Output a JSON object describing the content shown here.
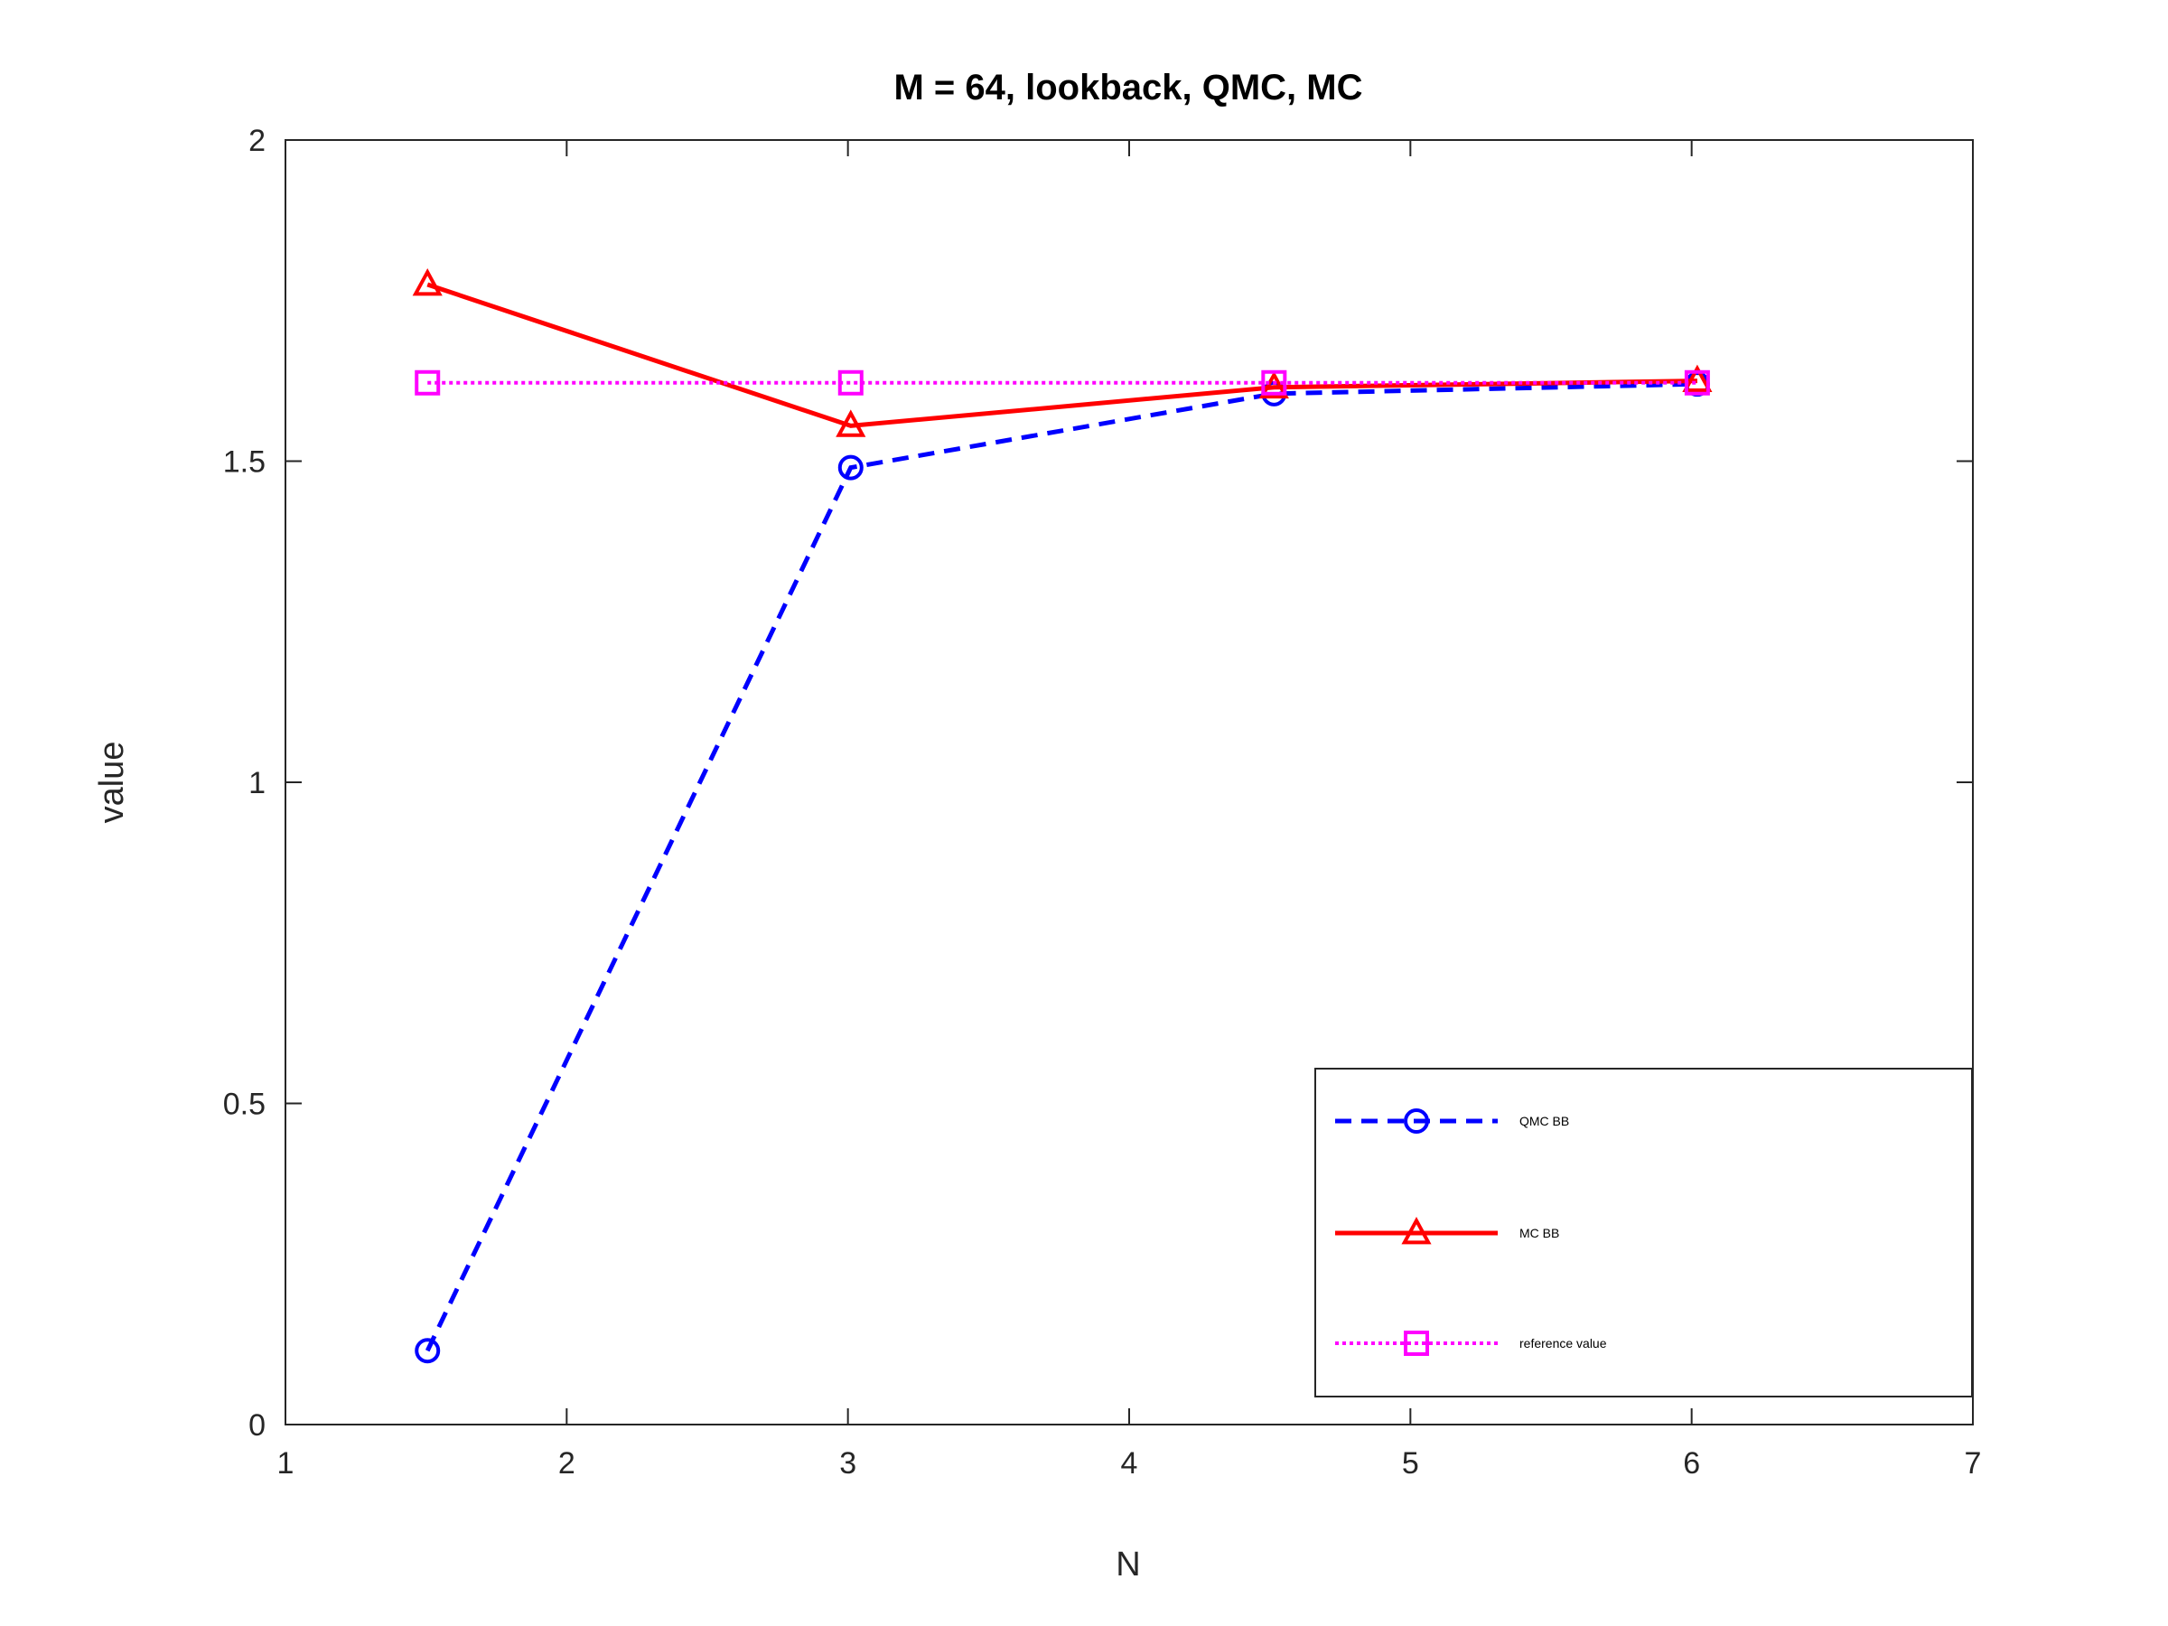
{
  "chart_data": {
    "type": "line",
    "title": "M = 64, lookback, QMC, MC",
    "xlabel": "N",
    "ylabel": "value",
    "xlim": [
      1,
      7
    ],
    "ylim": [
      0,
      2
    ],
    "xticks": [
      1,
      2,
      3,
      4,
      5,
      6,
      7
    ],
    "yticks": [
      0,
      0.5,
      1,
      1.5,
      2
    ],
    "xtick_labels": [
      "1",
      "2",
      "3",
      "4",
      "5",
      "6",
      "7"
    ],
    "ytick_labels": [
      "0",
      "0.5",
      "1",
      "1.5",
      "2"
    ],
    "grid": false,
    "legend_position": "bottom-right",
    "series": [
      {
        "name": "QMC BB",
        "color": "#0000ff",
        "line_style": "dashed",
        "marker": "circle",
        "x": [
          1.505,
          3.01,
          4.515,
          6.02
        ],
        "y": [
          0.115,
          1.49,
          1.605,
          1.62
        ]
      },
      {
        "name": "MC BB",
        "color": "#ff0000",
        "line_style": "solid",
        "marker": "triangle",
        "x": [
          1.505,
          3.01,
          4.515,
          6.02
        ],
        "y": [
          1.775,
          1.555,
          1.615,
          1.625
        ]
      },
      {
        "name": "reference value",
        "color": "#ff00ff",
        "line_style": "dotted",
        "marker": "square",
        "x": [
          1.505,
          3.01,
          4.515,
          6.02
        ],
        "y": [
          1.622,
          1.622,
          1.622,
          1.622
        ]
      }
    ]
  }
}
